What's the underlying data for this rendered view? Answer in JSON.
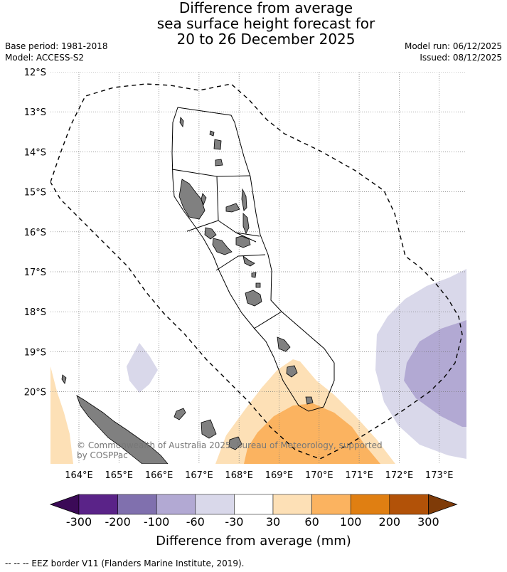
{
  "title": {
    "line1": "Difference from average",
    "line2": "sea surface height forecast for",
    "line3": "20 to 26 December 2025"
  },
  "meta": {
    "base_period": "Base period: 1981-2018",
    "model": "Model: ACCESS-S2",
    "model_run": "Model run: 06/12/2025",
    "issued": "Issued: 08/12/2025"
  },
  "map": {
    "lat_labels": [
      "12°S",
      "13°S",
      "14°S",
      "15°S",
      "16°S",
      "17°S",
      "18°S",
      "19°S",
      "20°S"
    ],
    "lon_labels": [
      "164°E",
      "165°E",
      "166°E",
      "167°E",
      "168°E",
      "169°E",
      "170°E",
      "171°E",
      "172°E",
      "173°E"
    ],
    "copyright": "© Commonwealth of Australia 2025, Bureau of Meteorology, supported",
    "copyright2": "by COSPPac"
  },
  "colorbar": {
    "title": "Difference from average (mm)",
    "tick_labels": [
      "-300",
      "-200",
      "-100",
      "-60",
      "-30",
      "30",
      "60",
      "100",
      "200",
      "300"
    ],
    "colors": [
      "#3b0a57",
      "#5a2388",
      "#8070ae",
      "#b2a9d3",
      "#d9d8ea",
      "#ffffff",
      "#fde0b6",
      "#fbb360",
      "#e07f12",
      "#b25208",
      "#7f3b08"
    ]
  },
  "legend": {
    "eez_note": "--  --  -- EEZ border V11 (Flanders Marine Institute, 2019)."
  }
}
